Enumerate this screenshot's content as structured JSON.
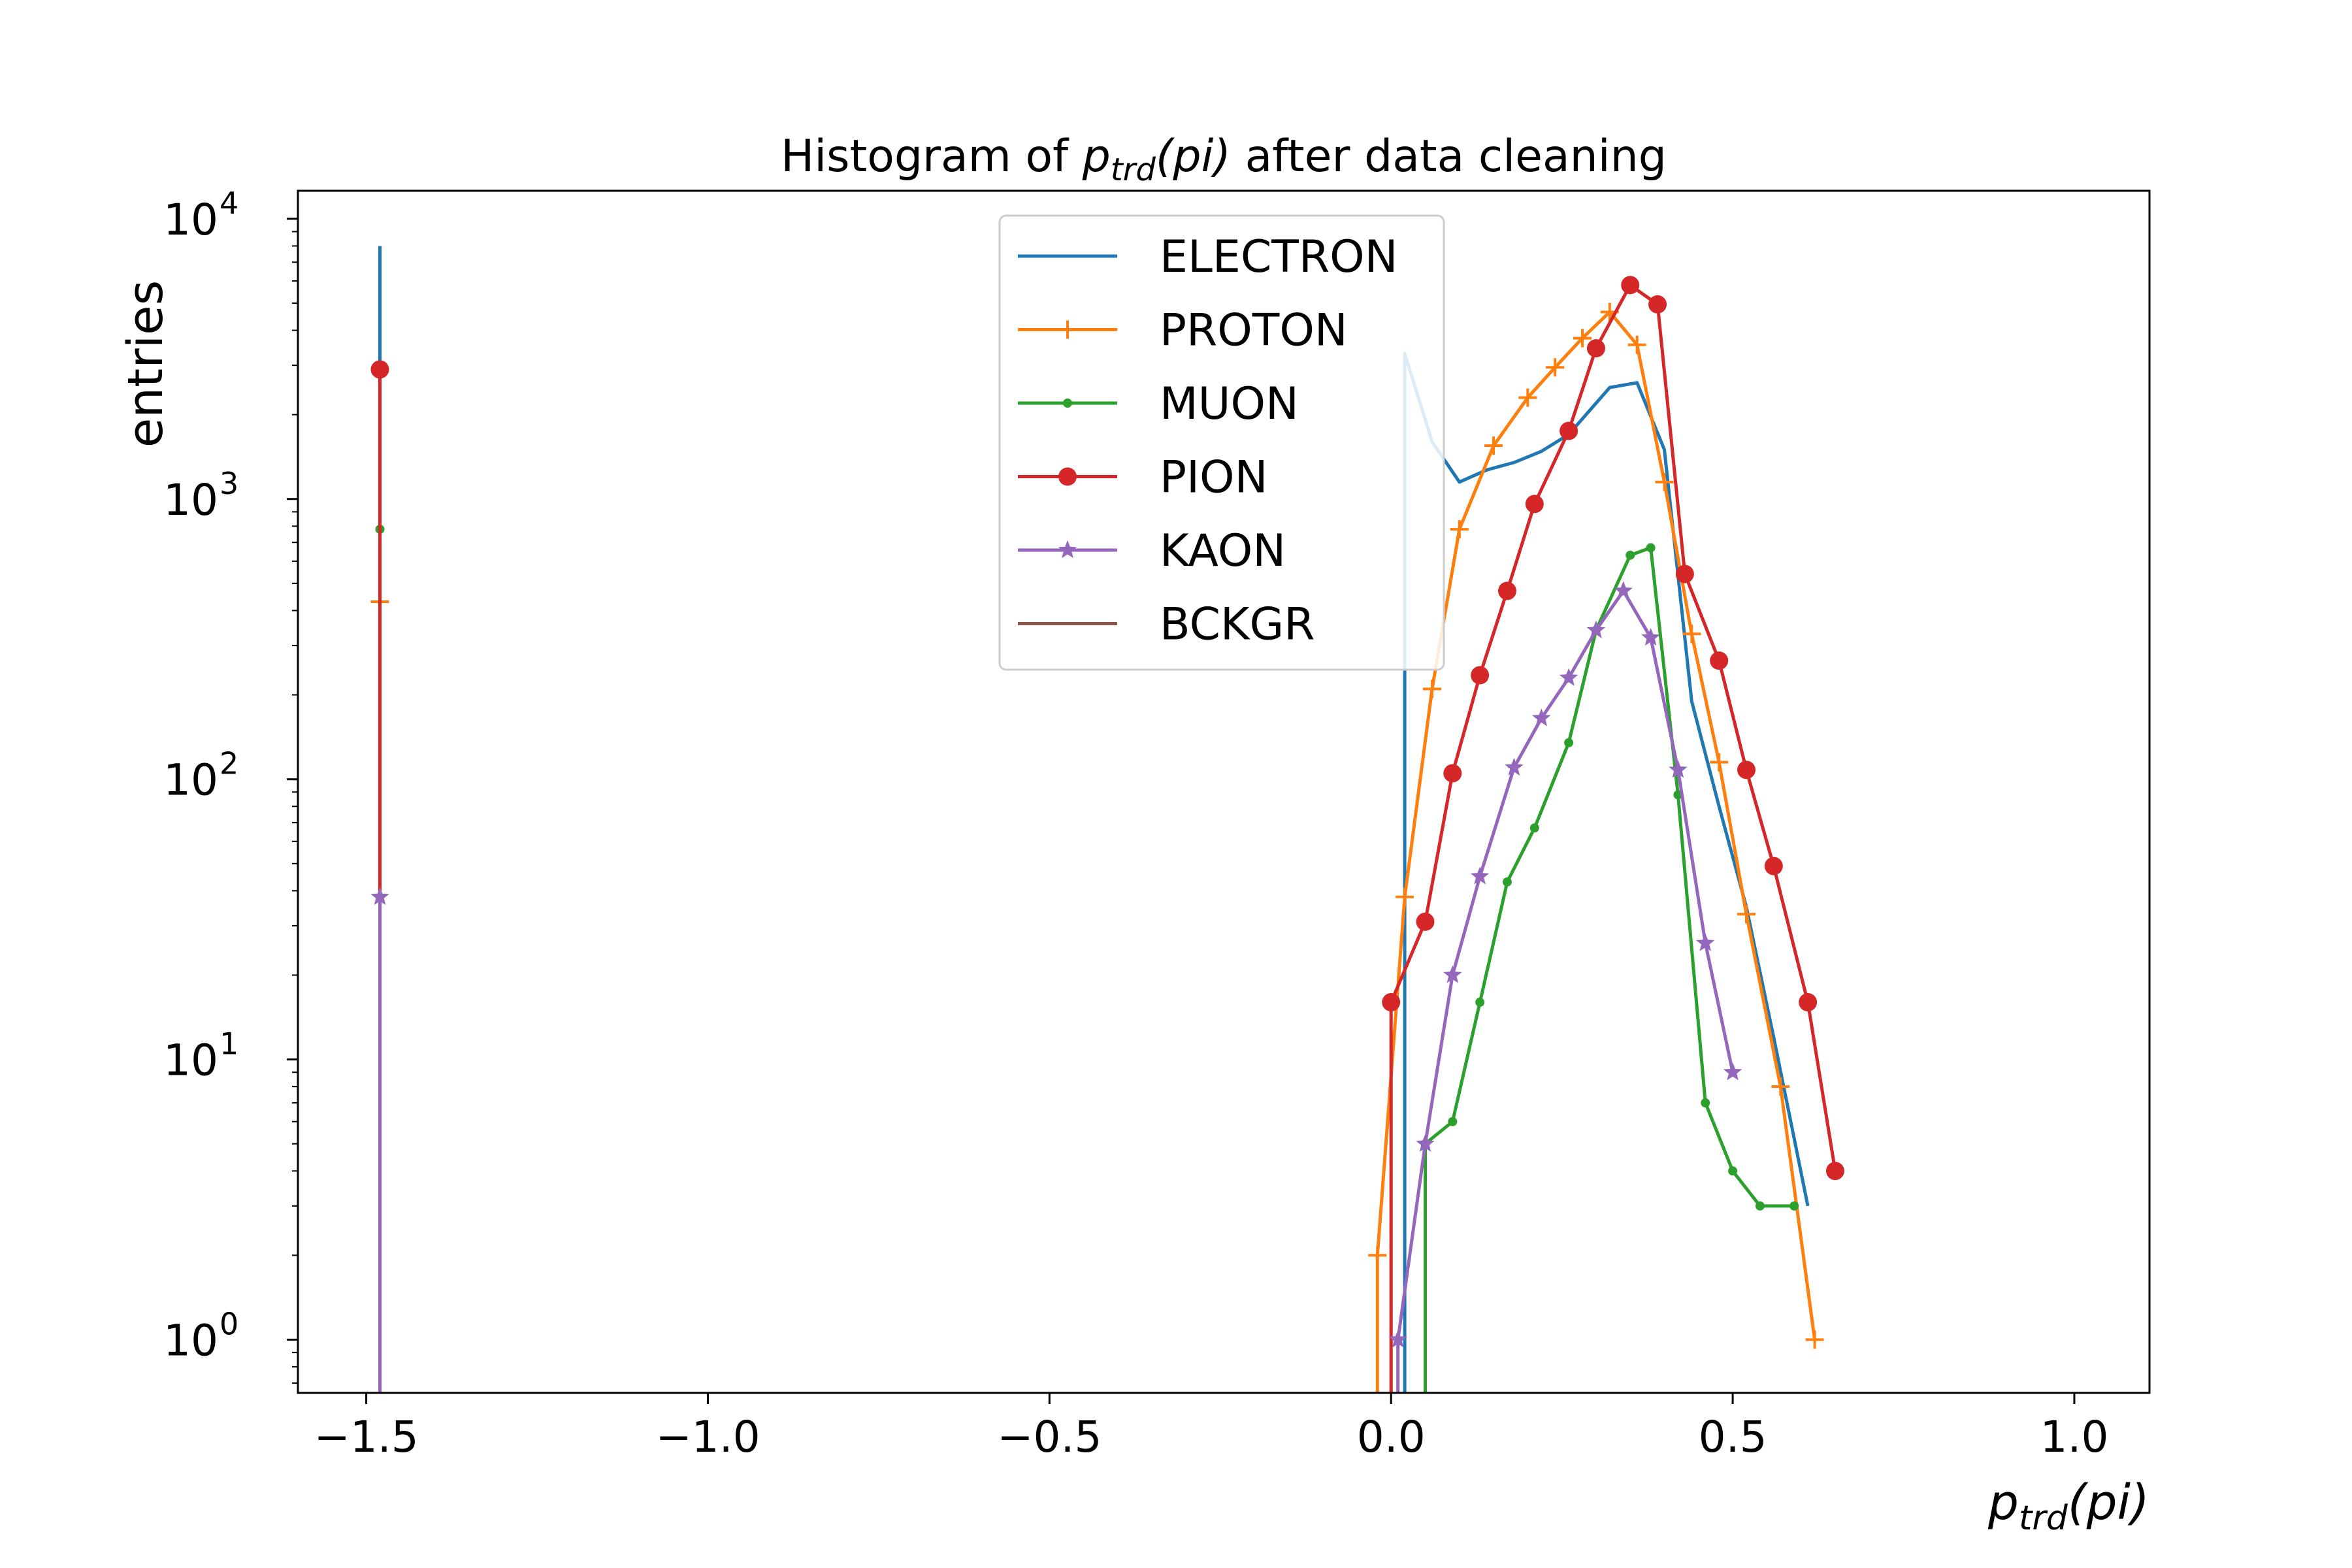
{
  "chart_data": {
    "type": "line",
    "title": {
      "prefix": "Histogram of ",
      "var": "p",
      "sub": "trd",
      "arg": "(pi)",
      "suffix": " after data cleaning"
    },
    "xlabel": {
      "var": "p",
      "sub": "trd",
      "arg": "(pi)"
    },
    "ylabel": "entries",
    "xlim": [
      -1.6,
      1.11
    ],
    "ylim_exp": [
      -0.19,
      4.1
    ],
    "y_scale": "log",
    "x_ticks": [
      {
        "value": -1.5,
        "label": "−1.5"
      },
      {
        "value": -1.0,
        "label": "−1.0"
      },
      {
        "value": -0.5,
        "label": "−0.5"
      },
      {
        "value": 0.0,
        "label": "0.0"
      },
      {
        "value": 0.5,
        "label": "0.5"
      },
      {
        "value": 1.0,
        "label": "1.0"
      }
    ],
    "y_ticks": [
      {
        "exp": 0,
        "base": "10",
        "sup": "0"
      },
      {
        "exp": 1,
        "base": "10",
        "sup": "1"
      },
      {
        "exp": 2,
        "base": "10",
        "sup": "2"
      },
      {
        "exp": 3,
        "base": "10",
        "sup": "3"
      },
      {
        "exp": 4,
        "base": "10",
        "sup": "4"
      }
    ],
    "legend_position": "upper-center",
    "grid": false,
    "series": [
      {
        "name": "ELECTRON",
        "color": "#1f77b4",
        "marker": "none",
        "points": [
          [
            -1.48,
            8000
          ],
          [
            0.02,
            3300
          ],
          [
            0.06,
            1600
          ],
          [
            0.1,
            1150
          ],
          [
            0.14,
            1270
          ],
          [
            0.18,
            1350
          ],
          [
            0.22,
            1480
          ],
          [
            0.26,
            1700
          ],
          [
            0.32,
            2500
          ],
          [
            0.36,
            2600
          ],
          [
            0.4,
            1500
          ],
          [
            0.44,
            190
          ],
          [
            0.48,
            80
          ],
          [
            0.52,
            35
          ],
          [
            0.56,
            12
          ],
          [
            0.61,
            3
          ]
        ]
      },
      {
        "name": "PROTON",
        "color": "#ff7f0e",
        "marker": "plus",
        "points": [
          [
            -1.48,
            430
          ],
          [
            -0.02,
            2
          ],
          [
            0.02,
            38
          ],
          [
            0.06,
            210
          ],
          [
            0.1,
            780
          ],
          [
            0.15,
            1550
          ],
          [
            0.2,
            2300
          ],
          [
            0.24,
            2950
          ],
          [
            0.28,
            3750
          ],
          [
            0.32,
            4650
          ],
          [
            0.36,
            3550
          ],
          [
            0.4,
            1150
          ],
          [
            0.44,
            330
          ],
          [
            0.48,
            115
          ],
          [
            0.52,
            33
          ],
          [
            0.57,
            8
          ],
          [
            0.62,
            1
          ]
        ]
      },
      {
        "name": "MUON",
        "color": "#2ca02c",
        "marker": "dot",
        "points": [
          [
            -1.48,
            780
          ],
          [
            0.05,
            5
          ],
          [
            0.09,
            6
          ],
          [
            0.13,
            16
          ],
          [
            0.17,
            43
          ],
          [
            0.21,
            67
          ],
          [
            0.26,
            135
          ],
          [
            0.3,
            340
          ],
          [
            0.35,
            630
          ],
          [
            0.38,
            670
          ],
          [
            0.42,
            88
          ],
          [
            0.46,
            7
          ],
          [
            0.5,
            4
          ],
          [
            0.54,
            3
          ],
          [
            0.59,
            3
          ]
        ]
      },
      {
        "name": "PION",
        "color": "#d62728",
        "marker": "circle",
        "points": [
          [
            -1.48,
            2900
          ],
          [
            0.0,
            16
          ],
          [
            0.05,
            31
          ],
          [
            0.09,
            105
          ],
          [
            0.13,
            235
          ],
          [
            0.17,
            470
          ],
          [
            0.21,
            960
          ],
          [
            0.26,
            1750
          ],
          [
            0.3,
            3450
          ],
          [
            0.35,
            5800
          ],
          [
            0.39,
            4950
          ],
          [
            0.43,
            540
          ],
          [
            0.48,
            265
          ],
          [
            0.52,
            108
          ],
          [
            0.56,
            49
          ],
          [
            0.61,
            16
          ],
          [
            0.65,
            4
          ]
        ]
      },
      {
        "name": "KAON",
        "color": "#9467bd",
        "marker": "star",
        "points": [
          [
            -1.48,
            38
          ],
          [
            0.01,
            1
          ],
          [
            0.05,
            5
          ],
          [
            0.09,
            20
          ],
          [
            0.13,
            45
          ],
          [
            0.18,
            110
          ],
          [
            0.22,
            165
          ],
          [
            0.26,
            230
          ],
          [
            0.3,
            340
          ],
          [
            0.34,
            470
          ],
          [
            0.38,
            320
          ],
          [
            0.42,
            108
          ],
          [
            0.46,
            26
          ],
          [
            0.5,
            9
          ]
        ]
      },
      {
        "name": "BCKGR",
        "color": "#8c564b",
        "marker": "none",
        "points": []
      }
    ]
  }
}
